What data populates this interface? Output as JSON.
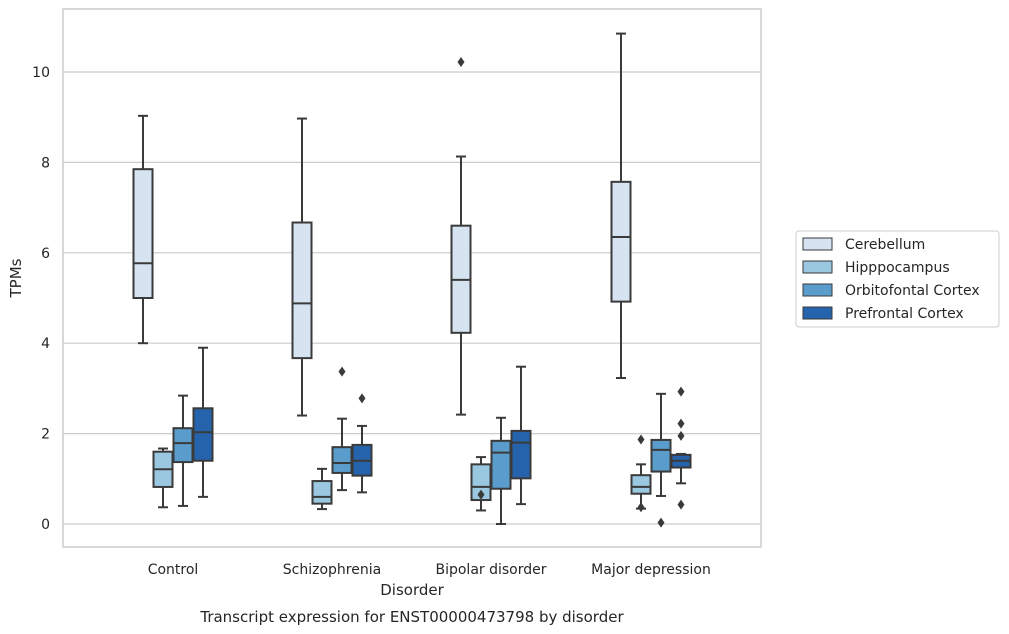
{
  "chart_data": {
    "type": "boxplot",
    "xlabel": "Disorder",
    "ylabel": "TPMs",
    "caption": "Transcript expression for ENST00000473798 by disorder",
    "ylim": [
      -0.5,
      11.4
    ],
    "yticks": [
      0,
      2,
      4,
      6,
      8,
      10
    ],
    "grid": "horizontal",
    "legend_position": "right",
    "categories": [
      "Control",
      "Schizophrenia",
      "Bipolar disorder",
      "Major depression"
    ],
    "series": [
      {
        "name": "Cerebellum",
        "color": "#d6e4f2",
        "boxes": [
          {
            "min": 4.0,
            "q1": 5.0,
            "median": 5.77,
            "q3": 7.85,
            "max": 9.03,
            "outliers": []
          },
          {
            "min": 2.4,
            "q1": 3.67,
            "median": 4.88,
            "q3": 6.67,
            "max": 8.97,
            "outliers": []
          },
          {
            "min": 2.42,
            "q1": 4.23,
            "median": 5.4,
            "q3": 6.6,
            "max": 8.13,
            "outliers": [
              10.22
            ]
          },
          {
            "min": 3.23,
            "q1": 4.92,
            "median": 6.35,
            "q3": 7.57,
            "max": 10.85,
            "outliers": []
          }
        ]
      },
      {
        "name": "Hipppocampus",
        "color": "#9ac8e0",
        "boxes": [
          {
            "min": 0.37,
            "q1": 0.82,
            "median": 1.21,
            "q3": 1.6,
            "max": 1.67,
            "outliers": []
          },
          {
            "min": 0.33,
            "q1": 0.45,
            "median": 0.6,
            "q3": 0.95,
            "max": 1.22,
            "outliers": []
          },
          {
            "min": 0.3,
            "q1": 0.53,
            "median": 0.82,
            "q3": 1.32,
            "max": 1.48,
            "outliers": [
              0.65
            ]
          },
          {
            "min": 0.34,
            "q1": 0.67,
            "median": 0.82,
            "q3": 1.08,
            "max": 1.32,
            "outliers": [
              0.37,
              1.87
            ]
          }
        ]
      },
      {
        "name": "Orbitofontal Cortex",
        "color": "#5a9ccb",
        "boxes": [
          {
            "min": 0.4,
            "q1": 1.37,
            "median": 1.79,
            "q3": 2.12,
            "max": 2.84,
            "outliers": []
          },
          {
            "min": 0.75,
            "q1": 1.13,
            "median": 1.35,
            "q3": 1.7,
            "max": 2.33,
            "outliers": [
              3.37
            ]
          },
          {
            "min": 0.0,
            "q1": 0.78,
            "median": 1.58,
            "q3": 1.84,
            "max": 2.35,
            "outliers": []
          },
          {
            "min": 0.62,
            "q1": 1.16,
            "median": 1.64,
            "q3": 1.86,
            "max": 2.88,
            "outliers": [
              0.03
            ]
          }
        ]
      },
      {
        "name": "Prefrontal Cortex",
        "color": "#2564ac",
        "boxes": [
          {
            "min": 0.6,
            "q1": 1.4,
            "median": 2.03,
            "q3": 2.56,
            "max": 3.9,
            "outliers": []
          },
          {
            "min": 0.7,
            "q1": 1.07,
            "median": 1.4,
            "q3": 1.75,
            "max": 2.17,
            "outliers": [
              2.78
            ]
          },
          {
            "min": 0.44,
            "q1": 1.01,
            "median": 1.8,
            "q3": 2.06,
            "max": 3.48,
            "outliers": []
          },
          {
            "min": 0.9,
            "q1": 1.25,
            "median": 1.4,
            "q3": 1.53,
            "max": 1.55,
            "outliers": [
              0.43,
              1.95,
              2.22,
              2.93
            ]
          }
        ]
      }
    ]
  }
}
